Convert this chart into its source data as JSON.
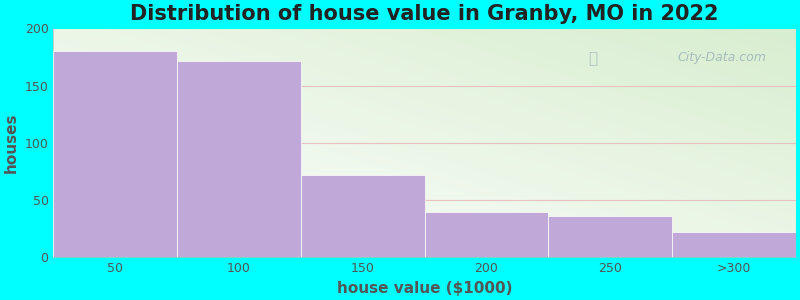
{
  "title": "Distribution of house value in Granby, MO in 2022",
  "xlabel": "house value ($1000)",
  "ylabel": "houses",
  "categories": [
    "50",
    "100",
    "150",
    "200",
    "250",
    ">300"
  ],
  "values": [
    180,
    172,
    72,
    40,
    36,
    22
  ],
  "bar_color": "#C0A8D8",
  "background_outer": "#00FFFF",
  "grid_color": "#E8C0C0",
  "ylim": [
    0,
    200
  ],
  "yticks": [
    0,
    50,
    100,
    150,
    200
  ],
  "title_fontsize": 15,
  "axis_label_fontsize": 11,
  "tick_fontsize": 9,
  "watermark_text": "City-Data.com",
  "watermark_color": "#A0B8B8",
  "label_color": "#555555"
}
